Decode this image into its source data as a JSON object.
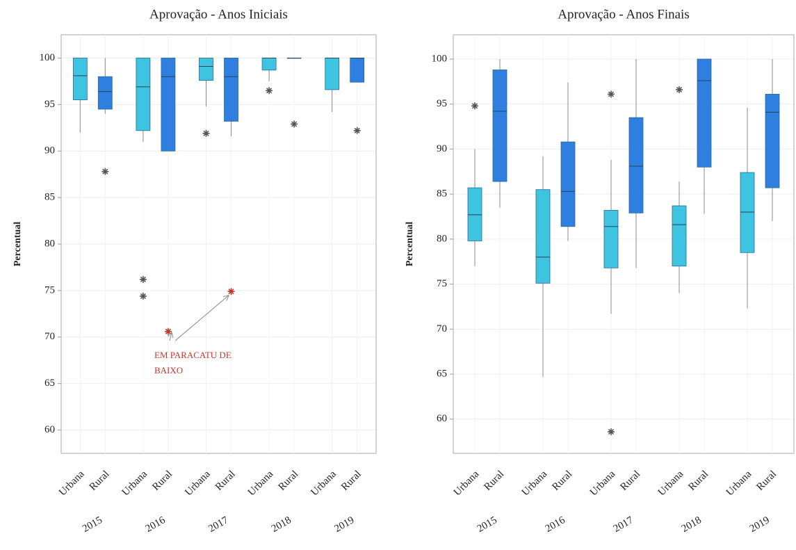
{
  "chart_data": [
    {
      "type": "box",
      "title": "Aprovação - Anos Iniciais",
      "y_label": "Percentual",
      "ylim": [
        57.5,
        102.5
      ],
      "yticks": [
        60,
        65,
        70,
        75,
        80,
        85,
        90,
        95,
        100
      ],
      "grid": true,
      "annotation": {
        "lines": [
          "EM PARACATU DE",
          "BAIXO"
        ],
        "color": "#c0392b"
      },
      "groups": [
        {
          "label": "2015",
          "boxes": [
            {
              "label": "Urbana",
              "color": "#3ec3e0",
              "whislo": 92,
              "q1": 95.5,
              "med": 98.1,
              "q3": 100,
              "whishi": 100,
              "fliers": []
            },
            {
              "label": "Rural",
              "color": "#2f7fe0",
              "whislo": 94,
              "q1": 94.5,
              "med": 96.4,
              "q3": 98,
              "whishi": 100,
              "fliers": [
                87.8
              ]
            }
          ]
        },
        {
          "label": "2016",
          "boxes": [
            {
              "label": "Urbana",
              "color": "#3ec3e0",
              "whislo": 91,
              "q1": 92.2,
              "med": 96.9,
              "q3": 100,
              "whishi": 100,
              "fliers": [
                76.2,
                74.4
              ]
            },
            {
              "label": "Rural",
              "color": "#2f7fe0",
              "whislo": 90,
              "q1": 90,
              "med": 98,
              "q3": 100,
              "whishi": 100,
              "fliers": [
                70.6
              ],
              "flier_color": "#c0392b"
            }
          ]
        },
        {
          "label": "2017",
          "boxes": [
            {
              "label": "Urbana",
              "color": "#3ec3e0",
              "whislo": 94.8,
              "q1": 97.6,
              "med": 99.1,
              "q3": 100,
              "whishi": 100,
              "fliers": [
                91.9
              ]
            },
            {
              "label": "Rural",
              "color": "#2f7fe0",
              "whislo": 91.6,
              "q1": 93.2,
              "med": 98,
              "q3": 100,
              "whishi": 100,
              "fliers": [
                74.9
              ],
              "flier_color": "#c0392b"
            }
          ]
        },
        {
          "label": "2018",
          "boxes": [
            {
              "label": "Urbana",
              "color": "#3ec3e0",
              "whislo": 97.5,
              "q1": 98.7,
              "med": 100,
              "q3": 100,
              "whishi": 100,
              "fliers": [
                96.5
              ]
            },
            {
              "label": "Rural",
              "color": "#2f7fe0",
              "whislo": 100,
              "q1": 100,
              "med": 100,
              "q3": 100,
              "whishi": 100,
              "fliers": [
                92.9
              ]
            }
          ]
        },
        {
          "label": "2019",
          "boxes": [
            {
              "label": "Urbana",
              "color": "#3ec3e0",
              "whislo": 94.2,
              "q1": 96.6,
              "med": 100,
              "q3": 100,
              "whishi": 100,
              "fliers": []
            },
            {
              "label": "Rural",
              "color": "#2f7fe0",
              "whislo": 97.4,
              "q1": 97.4,
              "med": 100,
              "q3": 100,
              "whishi": 100,
              "fliers": [
                92.2
              ]
            }
          ]
        }
      ]
    },
    {
      "type": "box",
      "title": "Aprovação - Anos Finais",
      "y_label": "Percentual",
      "ylim": [
        56.2,
        102.7
      ],
      "yticks": [
        60,
        65,
        70,
        75,
        80,
        85,
        90,
        95,
        100
      ],
      "grid": true,
      "groups": [
        {
          "label": "2015",
          "boxes": [
            {
              "label": "Urbana",
              "color": "#3ec3e0",
              "whislo": 77,
              "q1": 79.8,
              "med": 82.7,
              "q3": 85.7,
              "whishi": 90,
              "fliers": [
                94.8
              ]
            },
            {
              "label": "Rural",
              "color": "#2f7fe0",
              "whislo": 83.5,
              "q1": 86.4,
              "med": 94.2,
              "q3": 98.8,
              "whishi": 100,
              "fliers": []
            }
          ]
        },
        {
          "label": "2016",
          "boxes": [
            {
              "label": "Urbana",
              "color": "#3ec3e0",
              "whislo": 64.7,
              "q1": 75.1,
              "med": 78,
              "q3": 85.5,
              "whishi": 89.2,
              "fliers": []
            },
            {
              "label": "Rural",
              "color": "#2f7fe0",
              "whislo": 79.8,
              "q1": 81.4,
              "med": 85.3,
              "q3": 90.8,
              "whishi": 97.4,
              "fliers": []
            }
          ]
        },
        {
          "label": "2017",
          "boxes": [
            {
              "label": "Urbana",
              "color": "#3ec3e0",
              "whislo": 71.7,
              "q1": 76.8,
              "med": 81.4,
              "q3": 83.2,
              "whishi": 88.8,
              "fliers": [
                96.1,
                58.6
              ]
            },
            {
              "label": "Rural",
              "color": "#2f7fe0",
              "whislo": 76.8,
              "q1": 82.9,
              "med": 88.1,
              "q3": 93.5,
              "whishi": 100,
              "fliers": []
            }
          ]
        },
        {
          "label": "2018",
          "boxes": [
            {
              "label": "Urbana",
              "color": "#3ec3e0",
              "whislo": 74,
              "q1": 77,
              "med": 81.6,
              "q3": 83.7,
              "whishi": 86.4,
              "fliers": [
                96.6
              ]
            },
            {
              "label": "Rural",
              "color": "#2f7fe0",
              "whislo": 82.8,
              "q1": 88,
              "med": 97.6,
              "q3": 100,
              "whishi": 100,
              "fliers": []
            }
          ]
        },
        {
          "label": "2019",
          "boxes": [
            {
              "label": "Urbana",
              "color": "#3ec3e0",
              "whislo": 72.3,
              "q1": 78.5,
              "med": 83,
              "q3": 87.4,
              "whishi": 94.6,
              "fliers": []
            },
            {
              "label": "Rural",
              "color": "#2f7fe0",
              "whislo": 82,
              "q1": 85.7,
              "med": 94.1,
              "q3": 96.1,
              "whishi": 100,
              "fliers": []
            }
          ]
        }
      ]
    }
  ]
}
